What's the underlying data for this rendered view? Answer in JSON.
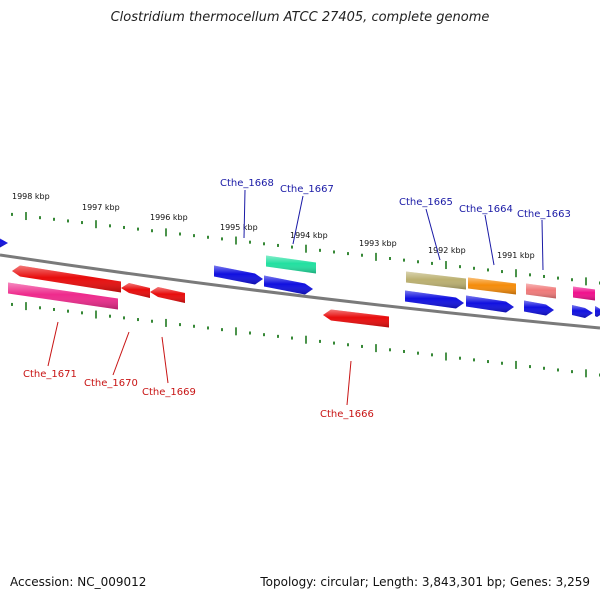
{
  "title": "Clostridium thermocellum ATCC 27405, complete genome",
  "accession": "Accession: NC_009012",
  "summary": "Topology: circular; Length: 3,843,301 bp; Genes: 3,259",
  "scale_labels": [
    "1998 kbp",
    "1997 kbp",
    "1996 kbp",
    "1995 kbp",
    "1994 kbp",
    "1993 kbp",
    "1992 kbp",
    "1991 kbp"
  ],
  "gene_labels": [
    "Cthe_1668",
    "Cthe_1667",
    "Cthe_1665",
    "Cthe_1664",
    "Cthe_1663",
    "Cthe_1671",
    "Cthe_1670",
    "Cthe_1669",
    "Cthe_1666"
  ],
  "colors": {
    "backbone": "#7a7a7a",
    "tick": "#1f7a1f",
    "gene_blue": "#1010e0",
    "gene_red": "#e80c0c",
    "gene_pink": "#ee2a8c",
    "gene_teal": "#22e0a0",
    "gene_olive": "#bbb070",
    "gene_orange": "#f58c0a",
    "gene_salmon": "#f07a7a",
    "gene_magenta": "#f0108c",
    "label_blue": "#1a1aa6",
    "label_red": "#c81414"
  }
}
